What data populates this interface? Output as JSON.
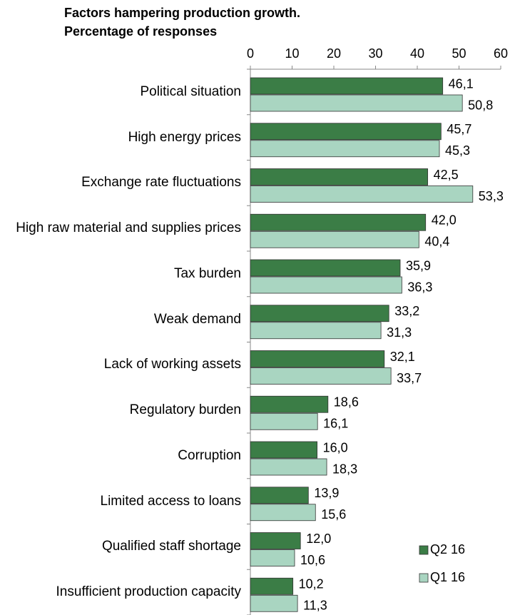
{
  "chart_data": {
    "type": "bar",
    "orientation": "horizontal",
    "title": "Factors hampering production growth.",
    "subtitle": "Percentage of responses",
    "categories": [
      "Political situation",
      "High energy prices",
      "Exchange rate fluctuations",
      "High raw material and supplies prices",
      "Tax burden",
      "Weak demand",
      "Lack of working assets",
      "Regulatory burden",
      "Corruption",
      "Limited access to loans",
      "Qualified staff shortage",
      "Insufficient production capacity"
    ],
    "series": [
      {
        "name": "Q2 16",
        "color": "#3b7d46",
        "values": [
          46.1,
          45.7,
          42.5,
          42.0,
          35.9,
          33.2,
          32.1,
          18.6,
          16.0,
          13.9,
          12.0,
          10.2
        ],
        "value_labels": [
          "46,1",
          "45,7",
          "42,5",
          "42,0",
          "35,9",
          "33,2",
          "32,1",
          "18,6",
          "16,0",
          "13,9",
          "12,0",
          "10,2"
        ]
      },
      {
        "name": "Q1 16",
        "color": "#a9d5c1",
        "values": [
          50.8,
          45.3,
          53.3,
          40.4,
          36.3,
          31.3,
          33.7,
          16.1,
          18.3,
          15.6,
          10.6,
          11.3
        ],
        "value_labels": [
          "50,8",
          "45,3",
          "53,3",
          "40,4",
          "36,3",
          "31,3",
          "33,7",
          "16,1",
          "18,3",
          "15,6",
          "10,6",
          "11,3"
        ]
      }
    ],
    "xlim": [
      0,
      60
    ],
    "xticks": [
      0,
      10,
      20,
      30,
      40,
      50,
      60
    ],
    "legend": "bottom-right"
  }
}
